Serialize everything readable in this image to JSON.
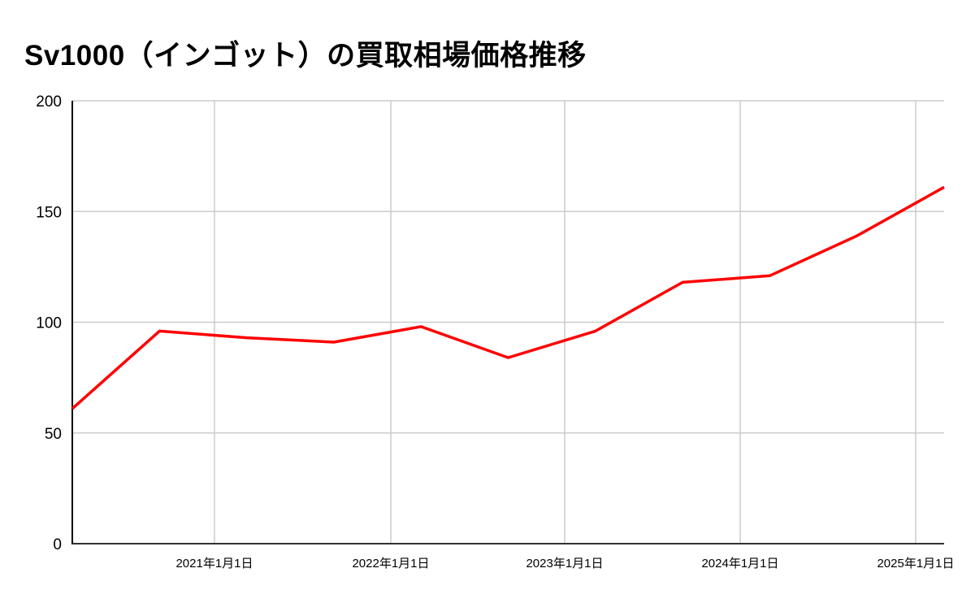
{
  "title": "Sv1000（インゴット）の買取相場価格推移",
  "colors": {
    "line": "#ff0000",
    "grid": "#cccccc",
    "axis": "#333333"
  },
  "chart_data": {
    "type": "line",
    "title": "Sv1000（インゴット）の買取相場価格推移",
    "xlabel": "",
    "ylabel": "",
    "ylim": [
      0,
      200
    ],
    "yticks": [
      0,
      50,
      100,
      150,
      200
    ],
    "xtick_labels": [
      "2021年1月1日",
      "2022年1月1日",
      "2023年1月1日",
      "2024年1月1日",
      "2025年1月1日"
    ],
    "grid": true,
    "legend": null,
    "series": [
      {
        "name": "買取相場価格",
        "color": "#ff0000",
        "x": [
          "2020-07",
          "2021-01",
          "2021-07",
          "2022-01",
          "2022-07",
          "2023-01",
          "2023-07",
          "2024-01",
          "2024-07",
          "2025-01",
          "2025-07"
        ],
        "values": [
          61,
          96,
          93,
          91,
          98,
          84,
          96,
          118,
          121,
          139,
          161
        ]
      }
    ]
  }
}
